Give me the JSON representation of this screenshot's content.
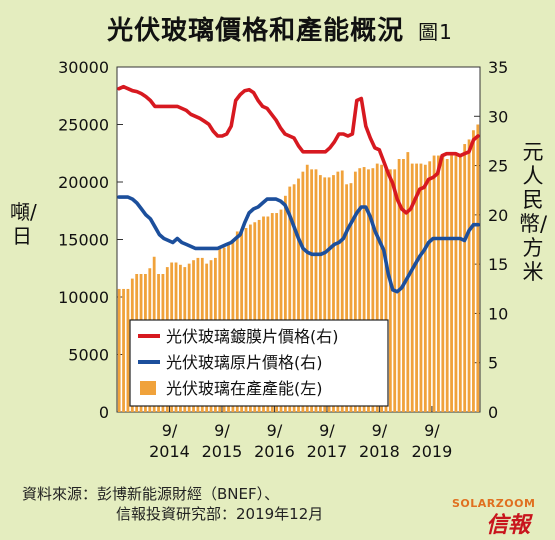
{
  "title": "光伏玻璃價格和產能概況",
  "figure_label": "圖1",
  "source": {
    "label": "資料來源：",
    "line1": "彭博新能源財經（BNEF）、",
    "line2": "信報投資研究部：2019年12月"
  },
  "branding": {
    "watermark": "SOLARZOOM",
    "logo": "信報"
  },
  "chart_data": {
    "type": "bar",
    "ylabel_left": "噸/日",
    "ylabel_right": "元人民幣/方米",
    "y_left_range": [
      0,
      30000
    ],
    "y_left_ticks": [
      "0",
      "5000",
      "10000",
      "15000",
      "20000",
      "25000",
      "30000"
    ],
    "y_right_range": [
      0,
      35
    ],
    "y_right_ticks": [
      "0",
      "5",
      "10",
      "15",
      "20",
      "25",
      "30",
      "35"
    ],
    "x_ticks": [
      "9/\n2014",
      "9/\n2015",
      "9/\n2016",
      "9/\n2017",
      "9/\n2018",
      "9/\n2019"
    ],
    "x_range_months": [
      "2013-09",
      "2019-12"
    ],
    "legend": [
      {
        "name": "光伏玻璃鍍膜片價格(右)",
        "color": "#d71920",
        "kind": "line"
      },
      {
        "name": "光伏玻璃原片價格(右)",
        "color": "#1c4f9c",
        "kind": "line"
      },
      {
        "name": "光伏玻璃在產產能(左)",
        "color": "#f0a23b",
        "kind": "bar"
      }
    ],
    "series": [
      {
        "name": "光伏玻璃在產產能(左)",
        "axis": "left",
        "values": [
          10700,
          10700,
          10700,
          11600,
          12000,
          12000,
          12000,
          12500,
          13500,
          12000,
          12000,
          12600,
          13000,
          13000,
          12800,
          12600,
          12900,
          13200,
          13400,
          13400,
          12900,
          13200,
          13400,
          14200,
          14300,
          14700,
          14800,
          15700,
          15900,
          16000,
          16300,
          16500,
          16700,
          17000,
          17000,
          17300,
          17300,
          17600,
          18800,
          19600,
          19800,
          20300,
          20900,
          21500,
          21100,
          21100,
          20600,
          20400,
          20400,
          20600,
          20900,
          21000,
          19800,
          19900,
          20900,
          21200,
          21300,
          21100,
          21200,
          21600,
          21500,
          21200,
          21100,
          21100,
          22000,
          22000,
          22600,
          21600,
          21600,
          21600,
          21500,
          21800,
          22300,
          22300,
          22300,
          22000,
          22300,
          22300,
          22300,
          23300,
          23700,
          24500,
          25000
        ]
      },
      {
        "name": "光伏玻璃鍍膜片價格(右)",
        "axis": "right",
        "values": [
          32.8,
          33,
          32.8,
          32.6,
          32.5,
          32.3,
          32,
          31.6,
          31,
          31,
          31,
          31,
          31,
          31,
          30.8,
          30.6,
          30.2,
          30,
          29.8,
          29.5,
          29.2,
          28.5,
          28,
          28,
          28.2,
          29,
          31.6,
          32.2,
          32.6,
          32.7,
          32.4,
          31.6,
          31,
          30.8,
          30.2,
          29.6,
          28.8,
          28.2,
          28,
          27.8,
          27,
          26.4,
          26.4,
          26.4,
          26.4,
          26.4,
          26.4,
          26.8,
          27.4,
          28.2,
          28.2,
          28,
          28.2,
          31.6,
          31.8,
          29,
          27.8,
          26.8,
          26.6,
          25.4,
          24.2,
          23.2,
          21.6,
          20.6,
          20.2,
          20.6,
          21.6,
          22.6,
          22.8,
          23.6,
          23.8,
          24.2,
          26,
          26.2,
          26.2,
          26.2,
          26,
          26.2,
          26.4,
          27.6,
          28
        ]
      },
      {
        "name": "光伏玻璃原片價格(右)",
        "axis": "right",
        "values": [
          21.8,
          21.8,
          21.8,
          21.6,
          21.2,
          20.6,
          20,
          19.6,
          18.8,
          18,
          17.6,
          17.4,
          17.2,
          17.6,
          17.2,
          17,
          16.8,
          16.6,
          16.6,
          16.6,
          16.6,
          16.6,
          16.6,
          16.8,
          17,
          17.2,
          17.6,
          18,
          19.2,
          20.2,
          20.6,
          20.8,
          21.2,
          21.6,
          21.6,
          21.6,
          21.4,
          21,
          20,
          18.8,
          17.6,
          16.6,
          16.2,
          16,
          16,
          16,
          16.2,
          16.6,
          17,
          17.2,
          17.6,
          18.6,
          19.4,
          20.2,
          20.8,
          20.8,
          19.8,
          18.4,
          17.4,
          16.4,
          14,
          12.4,
          12.2,
          12.6,
          13.4,
          14.2,
          15,
          15.8,
          16.4,
          17.2,
          17.6,
          17.6,
          17.6,
          17.6,
          17.6,
          17.6,
          17.6,
          17.4,
          18.4,
          19,
          19
        ]
      }
    ]
  }
}
